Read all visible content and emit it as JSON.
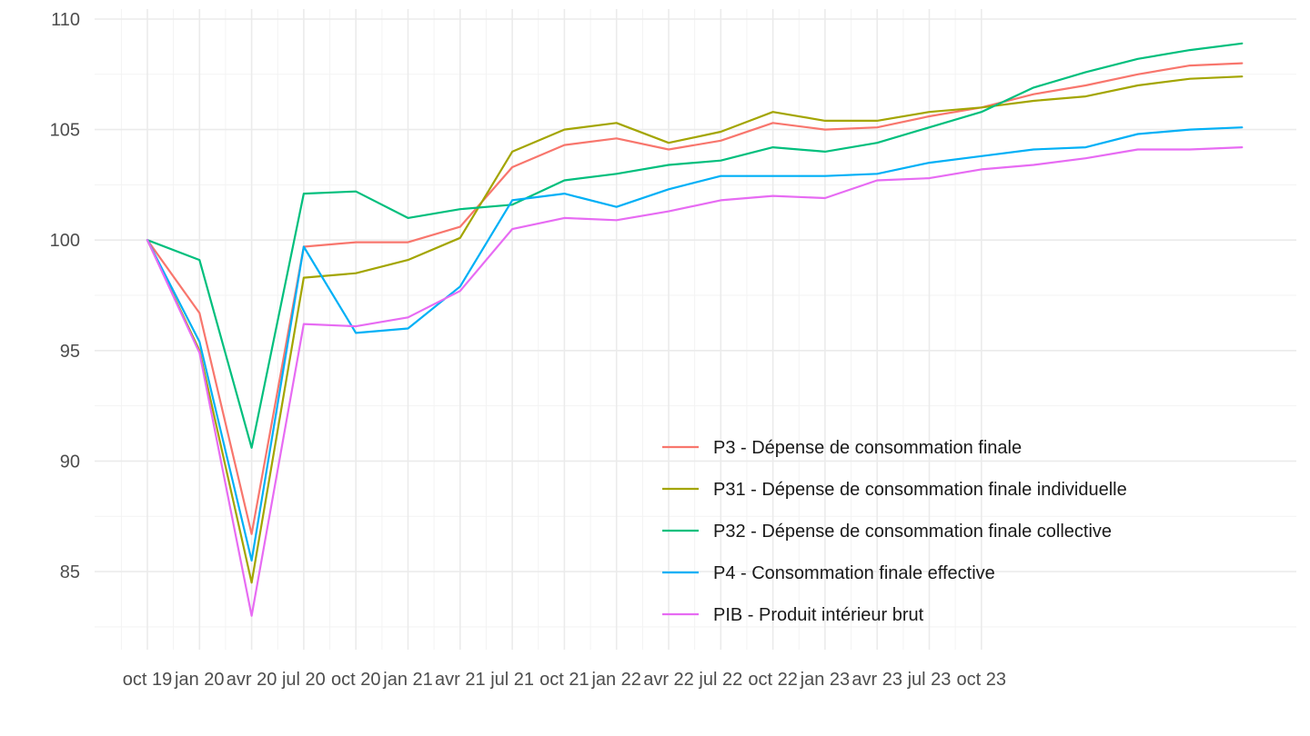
{
  "chart_data": {
    "type": "line",
    "title": "",
    "xlabel": "",
    "ylabel": "",
    "ylim": [
      82,
      110
    ],
    "yticks": [
      85,
      90,
      95,
      100,
      105,
      110
    ],
    "grid": true,
    "legend_position": "bottom-right (inside plot)",
    "x": [
      "2019-10",
      "2020-01",
      "2020-04",
      "2020-07",
      "2020-10",
      "2021-01",
      "2021-04",
      "2021-07",
      "2021-10",
      "2022-01",
      "2022-04",
      "2022-07",
      "2022-10",
      "2023-01",
      "2023-04",
      "2023-07",
      "2023-10",
      "2024-01",
      "2024-04",
      "2024-07",
      "2024-10",
      "2025-01",
      "2025-04"
    ],
    "x_tick_labels": [
      "oct 19",
      "jan 20",
      "avr 20",
      "jul 20",
      "oct 20",
      "jan 21",
      "avr 21",
      "jul 21",
      "oct 21",
      "jan 22",
      "avr 22",
      "jul 22",
      "oct 22",
      "jan 23",
      "avr 23",
      "jul 23",
      "oct 23"
    ],
    "series": [
      {
        "name": "P3 - Dépense de consommation finale",
        "color": "#F8766D",
        "values": [
          100,
          96.7,
          86.7,
          99.7,
          99.9,
          99.9,
          100.6,
          103.3,
          104.3,
          104.6,
          104.1,
          104.5,
          105.3,
          105.0,
          105.1,
          105.6,
          106.0,
          106.6,
          107.0,
          107.5,
          107.9,
          108.0,
          null
        ]
      },
      {
        "name": "P31 - Dépense de consommation finale individuelle",
        "color": "#A3A500",
        "values": [
          100,
          95.0,
          84.5,
          98.3,
          98.5,
          99.1,
          100.1,
          104.0,
          105.0,
          105.3,
          104.4,
          104.9,
          105.8,
          105.4,
          105.4,
          105.8,
          106.0,
          106.3,
          106.5,
          107.0,
          107.3,
          107.4,
          null
        ]
      },
      {
        "name": "P32 - Dépense de consommation finale collective",
        "color": "#00BF7D",
        "values": [
          100,
          99.1,
          90.6,
          102.1,
          102.2,
          101.0,
          101.4,
          101.6,
          102.7,
          103.0,
          103.4,
          103.6,
          104.2,
          104.0,
          104.4,
          105.1,
          105.8,
          106.9,
          107.6,
          108.2,
          108.6,
          108.9,
          null
        ]
      },
      {
        "name": "P4 - Consommation finale effective",
        "color": "#00B0F6",
        "values": [
          100,
          95.4,
          85.5,
          99.7,
          95.8,
          96.0,
          97.9,
          101.8,
          102.1,
          101.5,
          102.3,
          102.9,
          102.9,
          102.9,
          103.0,
          103.5,
          103.8,
          104.1,
          104.2,
          104.8,
          105.0,
          105.1,
          null
        ]
      },
      {
        "name": "PIB - Produit intérieur brut",
        "color": "#E76BF3",
        "values": [
          100,
          94.9,
          83.0,
          96.2,
          96.1,
          96.5,
          97.7,
          100.5,
          101.0,
          100.9,
          101.3,
          101.8,
          102.0,
          101.9,
          102.7,
          102.8,
          103.2,
          103.4,
          103.7,
          104.1,
          104.1,
          104.2,
          null
        ]
      }
    ]
  }
}
